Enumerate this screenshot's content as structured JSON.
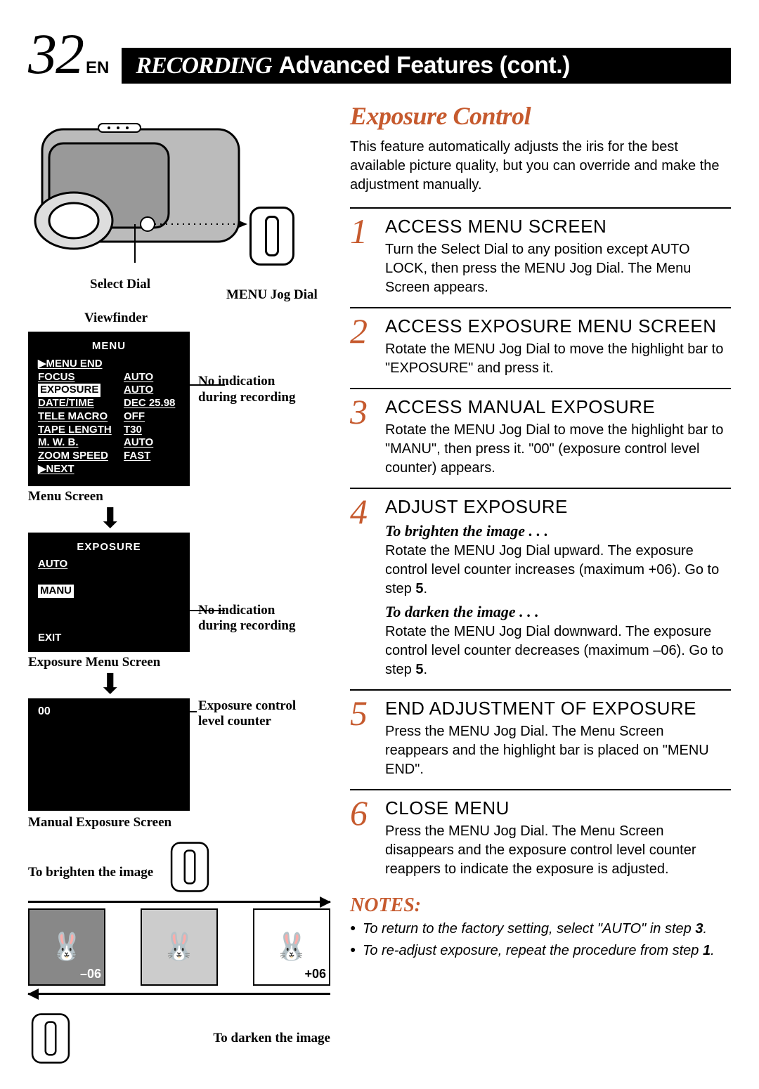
{
  "page": {
    "number": "32",
    "lang": "EN"
  },
  "header": {
    "section": "RECORDING",
    "subtitle": "Advanced Features (cont.)"
  },
  "colors": {
    "accent": "#c65a2e",
    "black": "#000000",
    "white": "#ffffff",
    "grey": "#888888"
  },
  "diagram": {
    "select_dial": "Select Dial",
    "menu_jog": "MENU Jog Dial",
    "viewfinder": "Viewfinder",
    "no_indication": "No indication during recording",
    "menu_screen_label": "Menu Screen",
    "exposure_menu_label": "Exposure Menu Screen",
    "manual_exposure_label": "Manual Exposure Screen",
    "exposure_counter_label": "Exposure control level counter",
    "brighten": "To brighten the image",
    "darken": "To darken the image",
    "menu": {
      "title": "MENU",
      "items": [
        {
          "l": "▶MENU END",
          "r": ""
        },
        {
          "l": "FOCUS",
          "r": "AUTO"
        },
        {
          "l": "EXPOSURE",
          "r": "AUTO",
          "hl": true
        },
        {
          "l": "DATE/TIME",
          "r": "DEC 25.98"
        },
        {
          "l": "TELE  MACRO",
          "r": "OFF"
        },
        {
          "l": "TAPE  LENGTH",
          "r": "T30"
        },
        {
          "l": "M. W. B.",
          "r": "AUTO"
        },
        {
          "l": "ZOOM SPEED",
          "r": "FAST"
        },
        {
          "l": "▶NEXT",
          "r": ""
        }
      ]
    },
    "exposure_menu": {
      "title": "EXPOSURE",
      "opt_auto": "AUTO",
      "opt_manu": "MANU",
      "exit": "EXIT"
    },
    "manual_value": "00",
    "minus": "–06",
    "plus": "+06"
  },
  "main": {
    "title": "Exposure Control",
    "intro": "This feature automatically adjusts the iris for the best available picture quality, but you can override and make the adjustment manually."
  },
  "steps": [
    {
      "n": "1",
      "head": "ACCESS MENU SCREEN",
      "body": "Turn the Select Dial to any position except AUTO LOCK, then press the MENU Jog Dial. The Menu Screen appears."
    },
    {
      "n": "2",
      "head": "ACCESS EXPOSURE MENU SCREEN",
      "body": "Rotate the MENU Jog Dial to move the highlight bar to \"EXPOSURE\" and press it."
    },
    {
      "n": "3",
      "head": "ACCESS MANUAL EXPOSURE",
      "body": "Rotate the MENU Jog Dial to move the highlight bar to \"MANU\", then press it. \"00\" (exposure control level counter) appears."
    },
    {
      "n": "4",
      "head": "ADJUST EXPOSURE",
      "sub1": "To brighten the image . . .",
      "body1a": "Rotate the MENU Jog Dial upward. The exposure control level counter increases (maximum +06). Go to step ",
      "body1b": "5",
      "body1c": ".",
      "sub2": "To darken the image . . .",
      "body2a": "Rotate the MENU Jog Dial downward. The exposure control level counter decreases (maximum –06). Go to step ",
      "body2b": "5",
      "body2c": "."
    },
    {
      "n": "5",
      "head": "END ADJUSTMENT OF EXPOSURE",
      "body": "Press the MENU Jog Dial. The Menu Screen reappears and the highlight bar is placed on \"MENU END\"."
    },
    {
      "n": "6",
      "head": "CLOSE MENU",
      "body": "Press the MENU Jog Dial. The Menu Screen disappears and the exposure control level counter reappers to indicate the exposure is adjusted."
    }
  ],
  "notes": {
    "head": "NOTES:",
    "items": [
      {
        "a": "To return to the factory setting, select \"AUTO\" in step ",
        "b": "3",
        "c": "."
      },
      {
        "a": "To re-adjust exposure, repeat the procedure from step ",
        "b": "1",
        "c": "."
      }
    ]
  }
}
